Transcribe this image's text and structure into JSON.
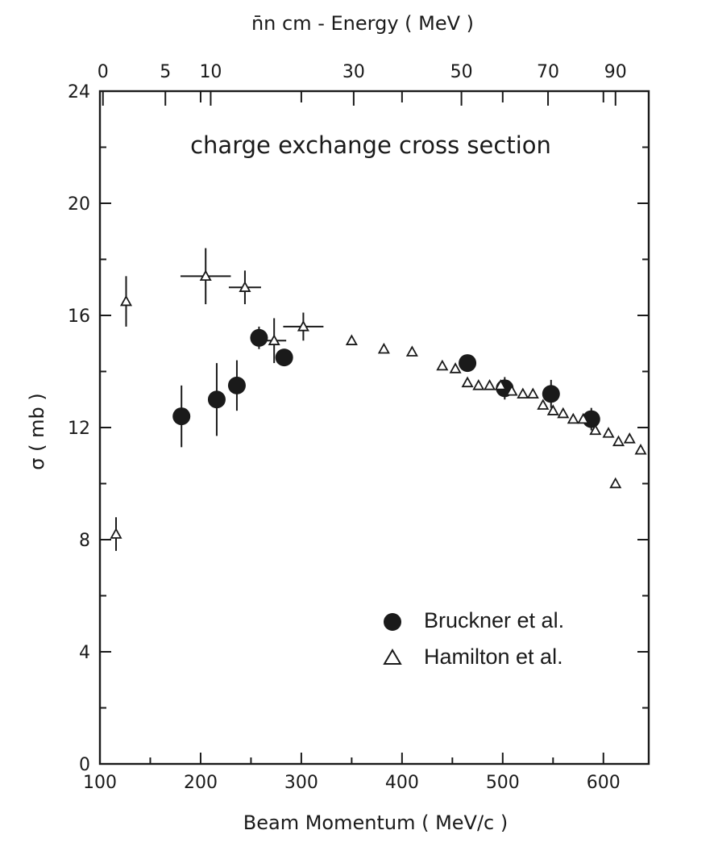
{
  "chart_data": {
    "type": "scatter",
    "title": "charge exchange cross section",
    "xlabel": "Beam Momentum  ( MeV/c )",
    "ylabel": "σ ( mb )",
    "top_axis_label": "n̄n  cm - Energy   ( MeV )",
    "xlim": [
      100,
      645
    ],
    "ylim": [
      0,
      24
    ],
    "x_ticks": [
      100,
      200,
      300,
      400,
      500,
      600
    ],
    "y_ticks": [
      0,
      4,
      8,
      12,
      16,
      20,
      24
    ],
    "top_ticks": [
      {
        "label": "0",
        "x": 103
      },
      {
        "label": "5",
        "x": 165
      },
      {
        "label": "10",
        "x": 210
      },
      {
        "label": "30",
        "x": 352
      },
      {
        "label": "50",
        "x": 459
      },
      {
        "label": "70",
        "x": 545
      },
      {
        "label": "90",
        "x": 612
      }
    ],
    "grid": false,
    "legend_position": "bottom-right",
    "series": [
      {
        "name": "Bruckner et al.",
        "marker": "filled-circle",
        "points": [
          {
            "x": 181,
            "y": 12.4,
            "xerr": 0,
            "yerr": 1.1
          },
          {
            "x": 216,
            "y": 13.0,
            "xerr": 0,
            "yerr": 1.3
          },
          {
            "x": 236,
            "y": 13.5,
            "xerr": 0,
            "yerr": 0.9
          },
          {
            "x": 258,
            "y": 15.2,
            "xerr": 0,
            "yerr": 0.4
          },
          {
            "x": 283,
            "y": 14.5,
            "xerr": 0,
            "yerr": 0.3
          },
          {
            "x": 465,
            "y": 14.3,
            "xerr": 0,
            "yerr": 0.3
          },
          {
            "x": 502,
            "y": 13.4,
            "xerr": 0,
            "yerr": 0.4
          },
          {
            "x": 548,
            "y": 13.2,
            "xerr": 0,
            "yerr": 0.5
          },
          {
            "x": 588,
            "y": 12.3,
            "xerr": 0,
            "yerr": 0.4
          }
        ]
      },
      {
        "name": "Hamilton et al.",
        "marker": "open-triangle",
        "points": [
          {
            "x": 116,
            "y": 8.2,
            "xerr": 0,
            "yerr": 0.6
          },
          {
            "x": 126,
            "y": 16.5,
            "xerr": 0,
            "yerr": 0.9
          },
          {
            "x": 205,
            "y": 17.4,
            "xerr": 25,
            "yerr": 1.0
          },
          {
            "x": 244,
            "y": 17.0,
            "xerr": 16,
            "yerr": 0.6
          },
          {
            "x": 273,
            "y": 15.1,
            "xerr": 12,
            "yerr": 0.8
          },
          {
            "x": 302,
            "y": 15.6,
            "xerr": 20,
            "yerr": 0.5
          },
          {
            "x": 350,
            "y": 15.1,
            "xerr": 0,
            "yerr": 0
          },
          {
            "x": 382,
            "y": 14.8,
            "xerr": 0,
            "yerr": 0
          },
          {
            "x": 410,
            "y": 14.7,
            "xerr": 0,
            "yerr": 0
          },
          {
            "x": 440,
            "y": 14.2,
            "xerr": 0,
            "yerr": 0
          },
          {
            "x": 453,
            "y": 14.1,
            "xerr": 0,
            "yerr": 0
          },
          {
            "x": 465,
            "y": 13.6,
            "xerr": 0,
            "yerr": 0
          },
          {
            "x": 476,
            "y": 13.5,
            "xerr": 0,
            "yerr": 0
          },
          {
            "x": 487,
            "y": 13.5,
            "xerr": 0,
            "yerr": 0
          },
          {
            "x": 498,
            "y": 13.5,
            "xerr": 0,
            "yerr": 0
          },
          {
            "x": 509,
            "y": 13.3,
            "xerr": 0,
            "yerr": 0
          },
          {
            "x": 520,
            "y": 13.2,
            "xerr": 0,
            "yerr": 0
          },
          {
            "x": 530,
            "y": 13.2,
            "xerr": 0,
            "yerr": 0
          },
          {
            "x": 540,
            "y": 12.8,
            "xerr": 0,
            "yerr": 0
          },
          {
            "x": 550,
            "y": 12.6,
            "xerr": 0,
            "yerr": 0
          },
          {
            "x": 560,
            "y": 12.5,
            "xerr": 0,
            "yerr": 0
          },
          {
            "x": 570,
            "y": 12.3,
            "xerr": 0,
            "yerr": 0
          },
          {
            "x": 580,
            "y": 12.3,
            "xerr": 0,
            "yerr": 0
          },
          {
            "x": 592,
            "y": 11.9,
            "xerr": 0,
            "yerr": 0
          },
          {
            "x": 605,
            "y": 11.8,
            "xerr": 0,
            "yerr": 0
          },
          {
            "x": 615,
            "y": 11.5,
            "xerr": 0,
            "yerr": 0
          },
          {
            "x": 626,
            "y": 11.6,
            "xerr": 0,
            "yerr": 0
          },
          {
            "x": 637,
            "y": 11.2,
            "xerr": 0,
            "yerr": 0
          },
          {
            "x": 612,
            "y": 10.0,
            "xerr": 0,
            "yerr": 0
          }
        ]
      }
    ]
  }
}
